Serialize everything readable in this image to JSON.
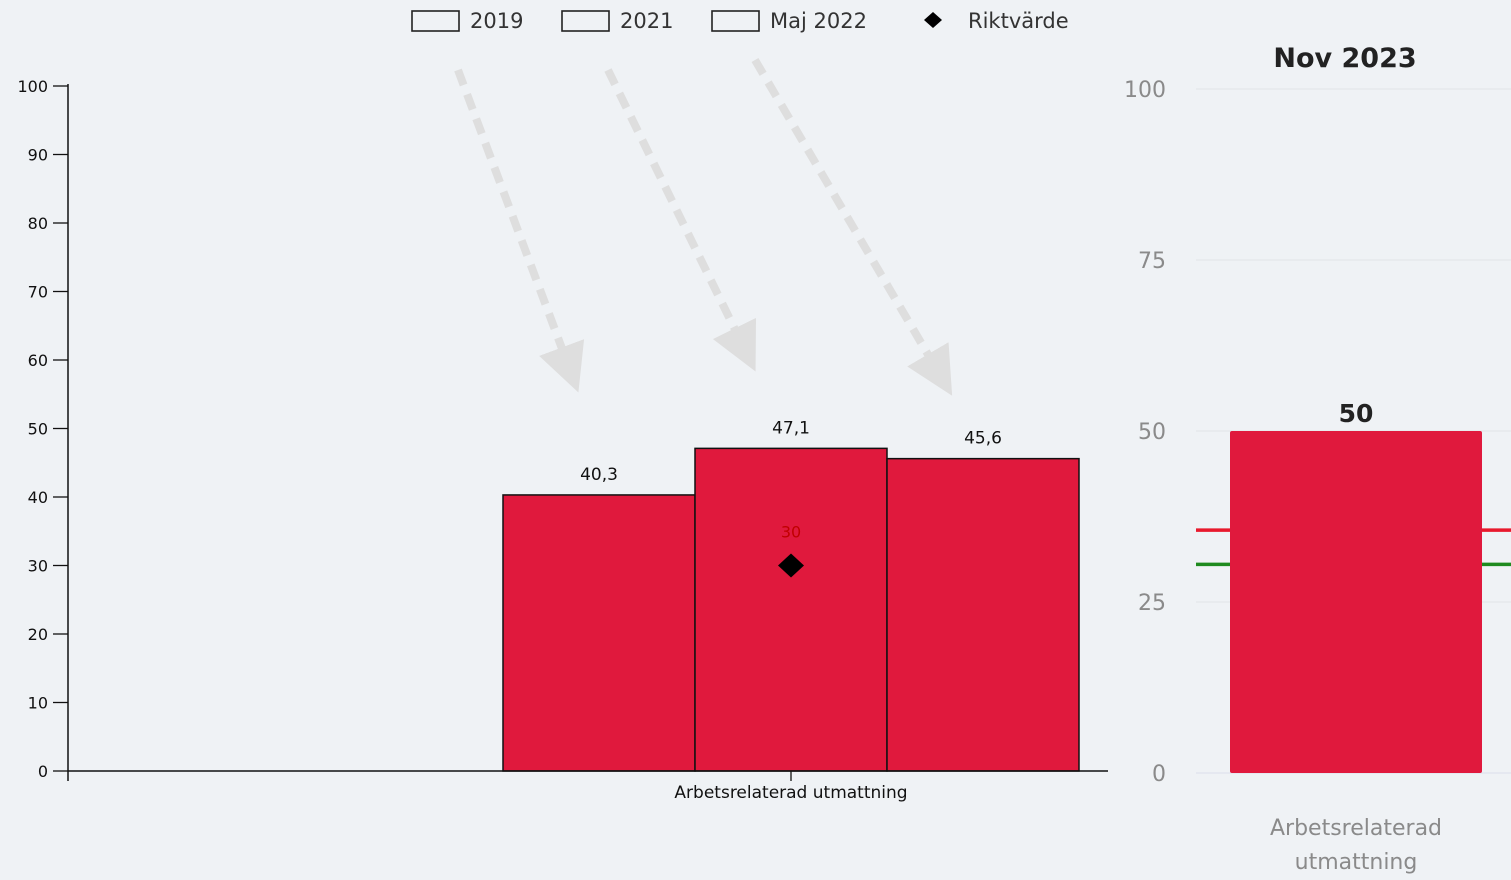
{
  "chart_data": [
    {
      "type": "bar",
      "legend": [
        {
          "label": "2019",
          "marker": "box"
        },
        {
          "label": "2021",
          "marker": "box"
        },
        {
          "label": "Maj 2022",
          "marker": "box"
        },
        {
          "label": "Riktvärde",
          "marker": "diamond"
        }
      ],
      "categories": [
        "Arbetsrelaterad utmattning"
      ],
      "series": [
        {
          "name": "2019",
          "values": [
            40.3
          ],
          "label": "40,3"
        },
        {
          "name": "2021",
          "values": [
            47.1
          ],
          "label": "47,1"
        },
        {
          "name": "Maj 2022",
          "values": [
            45.6
          ],
          "label": "45,6"
        }
      ],
      "target": {
        "name": "Riktvärde",
        "value": 30,
        "label": "30"
      },
      "ylim": [
        0,
        100
      ],
      "yticks": [
        "0",
        "10",
        "20",
        "30",
        "40",
        "50",
        "60",
        "70",
        "80",
        "90",
        "100"
      ],
      "bar_color": "#e0193d",
      "target_label_color": "#c00000",
      "annotations": "three dashed gray arrows pointing down toward the bars"
    },
    {
      "type": "bar",
      "title": "Nov 2023",
      "categories": [
        "Arbetsrelaterad utmattning"
      ],
      "category_lines": [
        "Arbetsrelaterad",
        "utmattning"
      ],
      "values": [
        50
      ],
      "value_labels": [
        "50"
      ],
      "ylim": [
        0,
        100
      ],
      "yticks": [
        "0",
        "25",
        "50",
        "75",
        "100"
      ],
      "grid": true,
      "bar_color": "#e0193d",
      "reference_lines": [
        {
          "color": "#e8192c",
          "value": 35.5
        },
        {
          "color": "#1e8a1e",
          "value": 30.5
        }
      ]
    }
  ]
}
